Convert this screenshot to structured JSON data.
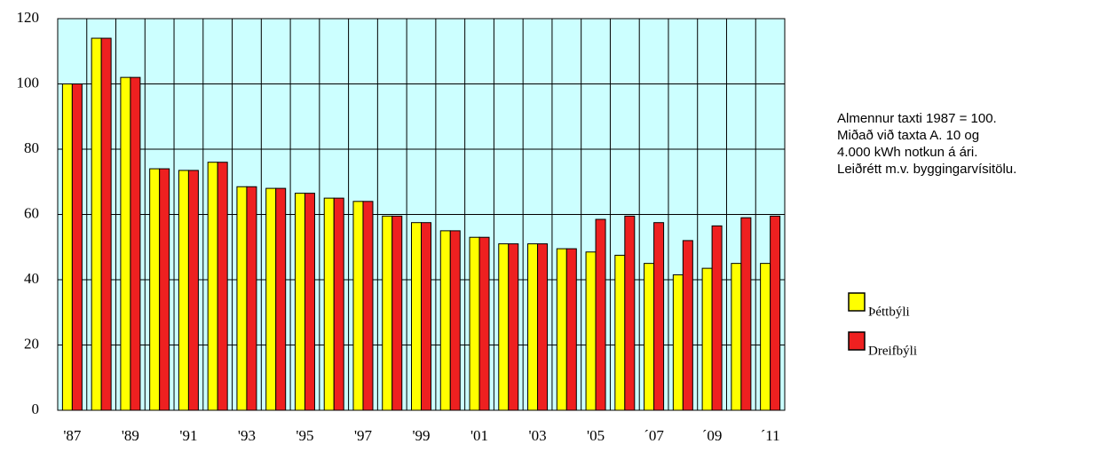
{
  "chart_data": {
    "type": "bar",
    "categories": [
      "'87",
      null,
      "'89",
      null,
      "'91",
      null,
      "'93",
      null,
      "'95",
      null,
      "'97",
      null,
      "'99",
      null,
      "'01",
      null,
      "'03",
      null,
      "'05",
      null,
      "´07",
      null,
      "´09",
      null,
      "´11"
    ],
    "series": [
      {
        "name": "Þéttbýli",
        "color": "#ffff00",
        "values": [
          100,
          114,
          102,
          74,
          73.5,
          76,
          68.5,
          68,
          66.5,
          65,
          64,
          59.5,
          57.5,
          55,
          53,
          51,
          51,
          49.5,
          48.5,
          47.5,
          45,
          41.5,
          43.5,
          45,
          45
        ]
      },
      {
        "name": "Dreifbýli",
        "color": "#ee2020",
        "values": [
          100,
          114,
          102,
          74,
          73.5,
          76,
          68.5,
          68,
          66.5,
          65,
          64,
          59.5,
          57.5,
          55,
          53,
          51,
          51,
          49.5,
          58.5,
          59.5,
          57.5,
          52,
          56.5,
          59,
          59.5
        ]
      }
    ],
    "ylim": [
      0,
      120
    ],
    "yticks": [
      0,
      20,
      40,
      60,
      80,
      100,
      120
    ],
    "grid": true,
    "background": "#ccffff",
    "annotation": [
      "Almennur taxti 1987 = 100.",
      "Miðað við taxta A. 10 og",
      "4.000 kWh notkun á ári.",
      "Leiðrétt m.v. byggingarvísitölu."
    ],
    "legend": "right"
  }
}
